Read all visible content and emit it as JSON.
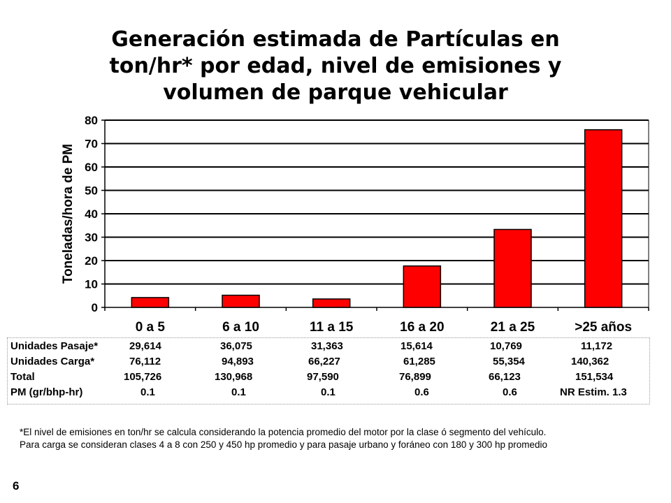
{
  "title_lines": [
    "Generación estimada de Partículas en",
    "ton/hr* por edad, nivel de emisiones y",
    "volumen de parque vehicular"
  ],
  "chart_data": {
    "type": "bar",
    "title": "Generación estimada de Partículas en ton/hr* por edad, nivel de emisiones y volumen de parque vehicular",
    "ylabel": "Toneladas/hora de PM",
    "xlabel": "",
    "categories": [
      "0 a 5",
      "6 a 10",
      "11 a 15",
      "16 a 20",
      "21 a 25",
      ">25 años"
    ],
    "values": [
      4.2,
      5.2,
      3.6,
      17.7,
      33.3,
      75.9
    ],
    "ylim": [
      0,
      80
    ],
    "yticks": [
      0,
      10,
      20,
      30,
      40,
      50,
      60,
      70,
      80
    ],
    "grid": true,
    "bar_color": "#ff0000",
    "legend": "none"
  },
  "table": {
    "rows": [
      {
        "label": "Unidades Pasaje*",
        "values": [
          "29,614",
          "36,075",
          "31,363",
          "15,614",
          "10,769",
          "11,172"
        ]
      },
      {
        "label": "Unidades Carga*",
        "values": [
          "76,112",
          "94,893",
          "66,227",
          "61,285",
          "55,354",
          "140,362"
        ]
      },
      {
        "label": "Total",
        "values": [
          "105,726",
          "130,968",
          "97,590",
          "76,899",
          "66,123",
          "151,534"
        ]
      },
      {
        "label": "PM (gr/bhp-hr)",
        "values": [
          "0.1",
          "0.1",
          "0.1",
          "0.6",
          "0.6",
          "NR Estim. 1.3"
        ]
      }
    ]
  },
  "footnote_lines": [
    "*El nivel de emisiones en ton/hr se calcula considerando la potencia promedio del motor por la clase ó segmento del vehículo.",
    "Para carga se consideran clases 4 a 8 con 250 y 450 hp promedio y para pasaje urbano y foráneo con 180 y 300 hp promedio"
  ],
  "page_number": "6"
}
